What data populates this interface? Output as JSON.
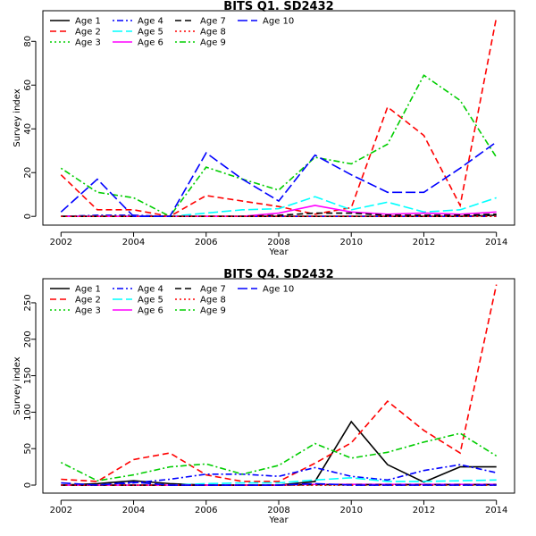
{
  "chart_data": [
    {
      "type": "line",
      "title": "BITS Q1. SD2432",
      "xlabel": "Year",
      "ylabel": "Survey index",
      "xlim": [
        2001.5,
        2014.5
      ],
      "ylim": [
        -4,
        94
      ],
      "xticks": [
        "2002",
        "2004",
        "2006",
        "2008",
        "2010",
        "2012",
        "2014"
      ],
      "yticks": [
        "0",
        "20",
        "40",
        "60",
        "80"
      ],
      "x": [
        2002,
        2003,
        2004,
        2005,
        2006,
        2007,
        2008,
        2009,
        2010,
        2011,
        2012,
        2013,
        2014
      ],
      "legend_position": "top-left, 4 columns",
      "series": [
        {
          "name": "Age 1",
          "color": "#000000",
          "dash": "solid",
          "values": [
            0,
            0,
            0,
            0,
            0,
            0,
            0,
            0,
            0,
            0,
            0,
            0,
            0.5
          ]
        },
        {
          "name": "Age 2",
          "color": "#FF0000",
          "dash": "dashed",
          "values": [
            19,
            3,
            3,
            0,
            9.5,
            7,
            4.5,
            1,
            4,
            50,
            37,
            5,
            91
          ]
        },
        {
          "name": "Age 3",
          "color": "#00CD00",
          "dash": "dotted",
          "values": [
            0,
            0,
            0,
            0,
            0,
            0,
            0,
            0,
            0,
            0,
            0,
            0,
            0
          ]
        },
        {
          "name": "Age 4",
          "color": "#0000FF",
          "dash": "dotdash",
          "values": [
            0,
            0.5,
            0.5,
            0,
            0,
            0,
            0,
            0,
            0,
            0,
            0,
            0,
            0
          ]
        },
        {
          "name": "Age 5",
          "color": "#00FFFF",
          "dash": "longdash",
          "values": [
            0,
            0,
            0,
            0,
            1.5,
            3,
            3.5,
            9,
            3,
            6.5,
            2,
            3,
            8.5
          ]
        },
        {
          "name": "Age 6",
          "color": "#FF00FF",
          "dash": "solid",
          "values": [
            0,
            0,
            0,
            0,
            0,
            0,
            1.5,
            5,
            2,
            1,
            1.5,
            1,
            2
          ]
        },
        {
          "name": "Age 7",
          "color": "#000000",
          "dash": "dashed",
          "values": [
            0,
            0,
            0,
            0,
            0,
            0,
            0.5,
            1.5,
            1.5,
            0.5,
            0.5,
            0.5,
            1
          ]
        },
        {
          "name": "Age 8",
          "color": "#FF0000",
          "dash": "dotted",
          "values": [
            0,
            0,
            0,
            0,
            0,
            0,
            0,
            0,
            0,
            0,
            0,
            0,
            0
          ]
        },
        {
          "name": "Age 9",
          "color": "#00CD00",
          "dash": "dotdash",
          "values": [
            22,
            11,
            8.5,
            0,
            22.5,
            17,
            12,
            27,
            24,
            33,
            64.5,
            53,
            27
          ]
        },
        {
          "name": "Age 10",
          "color": "#0000FF",
          "dash": "longdash",
          "values": [
            2,
            17,
            0,
            0,
            29,
            17,
            7,
            28,
            19,
            11,
            11,
            22,
            34
          ]
        }
      ]
    },
    {
      "type": "line",
      "title": "BITS Q4. SD2432",
      "xlabel": "Year",
      "ylabel": "Survey index",
      "xlim": [
        2001.5,
        2014.5
      ],
      "ylim": [
        -11,
        283
      ],
      "xticks": [
        "2002",
        "2004",
        "2006",
        "2008",
        "2010",
        "2012",
        "2014"
      ],
      "yticks": [
        "0",
        "50",
        "100",
        "150",
        "200",
        "250"
      ],
      "x": [
        2002,
        2003,
        2004,
        2005,
        2006,
        2007,
        2008,
        2009,
        2010,
        2011,
        2012,
        2013,
        2014
      ],
      "legend_position": "top-left, 4 columns",
      "series": [
        {
          "name": "Age 1",
          "color": "#000000",
          "dash": "solid",
          "values": [
            0,
            2,
            6,
            2,
            0,
            0,
            0,
            5,
            87,
            28,
            4,
            25,
            25
          ]
        },
        {
          "name": "Age 2",
          "color": "#FF0000",
          "dash": "dashed",
          "values": [
            8,
            5,
            35,
            44,
            14,
            5,
            5,
            30,
            58,
            115,
            75,
            44,
            275
          ]
        },
        {
          "name": "Age 3",
          "color": "#00CD00",
          "dash": "dotted",
          "values": [
            0,
            0,
            0,
            0,
            0,
            0,
            0,
            0,
            0,
            0,
            0,
            0,
            0
          ]
        },
        {
          "name": "Age 4",
          "color": "#0000FF",
          "dash": "dotdash",
          "values": [
            0,
            0,
            3,
            8,
            15,
            15,
            12,
            24,
            12,
            7,
            20,
            28,
            17
          ]
        },
        {
          "name": "Age 5",
          "color": "#00FFFF",
          "dash": "longdash",
          "values": [
            0,
            0,
            0,
            0,
            2,
            3,
            3,
            7,
            10,
            5,
            5,
            6,
            7
          ]
        },
        {
          "name": "Age 6",
          "color": "#FF00FF",
          "dash": "solid",
          "values": [
            0,
            0,
            0,
            0,
            0,
            0,
            0,
            1,
            1,
            1,
            1,
            1,
            1
          ]
        },
        {
          "name": "Age 7",
          "color": "#000000",
          "dash": "dashed",
          "values": [
            0,
            0,
            0,
            0,
            0,
            0,
            0,
            0.5,
            0.5,
            0.5,
            0.5,
            0.5,
            0.5
          ]
        },
        {
          "name": "Age 8",
          "color": "#FF0000",
          "dash": "dotted",
          "values": [
            0,
            0,
            0,
            0,
            0,
            0,
            0,
            0,
            0,
            0,
            0,
            0,
            0
          ]
        },
        {
          "name": "Age 9",
          "color": "#00CD00",
          "dash": "dotdash",
          "values": [
            31,
            6,
            14,
            25,
            29,
            15,
            27,
            57,
            37,
            45,
            59,
            71,
            40
          ]
        },
        {
          "name": "Age 10",
          "color": "#0000FF",
          "dash": "longdash",
          "values": [
            3,
            0,
            4,
            0,
            0,
            0,
            0,
            2,
            0,
            0,
            0,
            0,
            0
          ]
        }
      ]
    }
  ]
}
